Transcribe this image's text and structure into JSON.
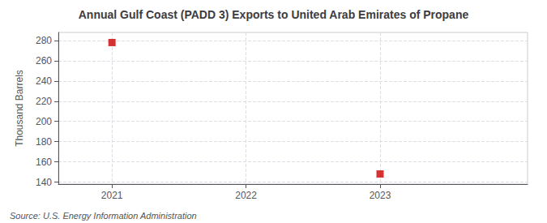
{
  "chart_data": {
    "type": "scatter",
    "title": "Annual Gulf Coast (PADD 3) Exports to United Arab Emirates of Propane",
    "ylabel": "Thousand Barrels",
    "annotations": [
      "Source: U.S. Energy Information Administration"
    ],
    "x": [
      2021,
      2023
    ],
    "values": [
      278,
      148
    ],
    "color": "#cc0000",
    "marker": "square",
    "xlim": [
      2020.6,
      2024.1
    ],
    "xticks": [
      2021,
      2022,
      2023
    ],
    "ylim": [
      138,
      288
    ],
    "yticks": [
      140,
      160,
      180,
      200,
      220,
      240,
      260,
      280
    ],
    "grid": true
  }
}
